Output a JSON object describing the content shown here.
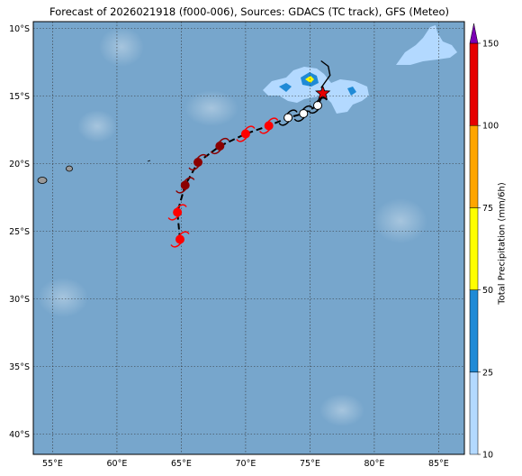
{
  "title": "Forecast of 2026021918 (f000-006), Sources: GDACS (TC track), GFS (Meteo)",
  "colorbar": {
    "label": "Total Precipitation (mm/6h)",
    "ticks": [
      "10",
      "25",
      "50",
      "75",
      "100",
      "150"
    ],
    "colors": [
      "#b3d9ff",
      "#1f8ad6",
      "#ffff00",
      "#ffa500",
      "#e60000",
      "#7b00b3"
    ]
  },
  "lat_labels": [
    "10°S",
    "15°S",
    "20°S",
    "25°S",
    "30°S",
    "35°S",
    "40°S"
  ],
  "lon_labels": [
    "55°E",
    "60°E",
    "65°E",
    "70°E",
    "75°E",
    "80°E",
    "85°E"
  ],
  "colors": {
    "ocean": "#77a6cc",
    "track": "#000000",
    "cyclone_past": "#8b0000",
    "cyclone_forecast": "#ff0000",
    "current_position": "#e60000"
  },
  "track": {
    "points": [
      {
        "lon": 64.9,
        "lat": -25.6
      },
      {
        "lon": 64.7,
        "lat": -23.6
      },
      {
        "lon": 65.3,
        "lat": -21.6
      },
      {
        "lon": 66.3,
        "lat": -19.9
      },
      {
        "lon": 68.0,
        "lat": -18.7
      },
      {
        "lon": 70.0,
        "lat": -17.8
      },
      {
        "lon": 71.8,
        "lat": -17.2
      },
      {
        "lon": 73.3,
        "lat": -16.6
      },
      {
        "lon": 74.5,
        "lat": -16.3
      },
      {
        "lon": 75.6,
        "lat": -15.7
      },
      {
        "lon": 76.0,
        "lat": -14.9
      }
    ],
    "current": {
      "lon": 76.0,
      "lat": -14.8
    }
  }
}
